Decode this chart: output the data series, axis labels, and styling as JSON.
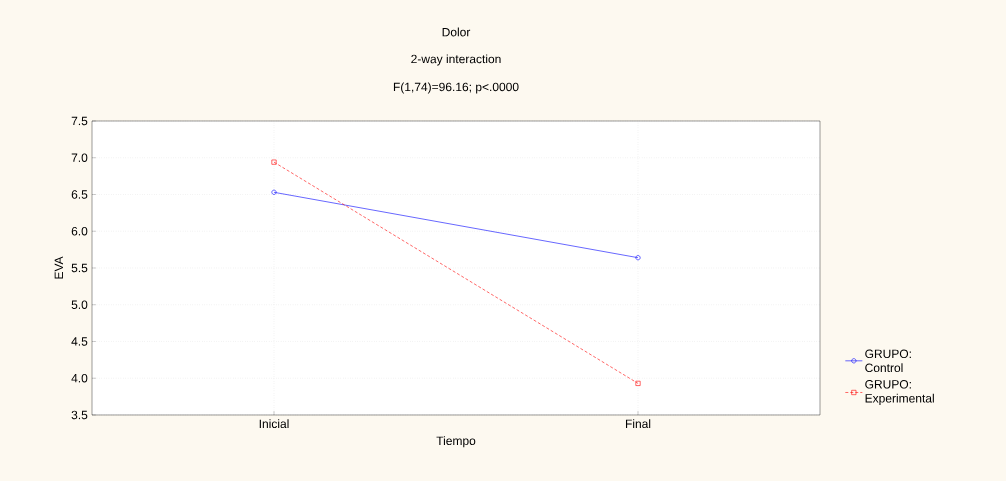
{
  "chart_data": {
    "type": "line",
    "title": "Dolor",
    "subtitle": "2-way interaction",
    "annotations": [
      "F(1,74)=96.16; p<.0000"
    ],
    "xlabel": "Tiempo",
    "ylabel": "EVA",
    "categories": [
      "Inicial",
      "Final"
    ],
    "series": [
      {
        "name": "GRUPO: Control",
        "color": "#0000ff",
        "values": [
          6.53,
          5.64
        ],
        "marker": "circle",
        "line_style": "solid"
      },
      {
        "name": "GRUPO: Experimental",
        "color": "#ff0000",
        "values": [
          6.94,
          3.93
        ],
        "marker": "square",
        "line_style": "dashed"
      }
    ],
    "ylim": [
      3.5,
      7.5
    ],
    "yticks": [
      {
        "value": 3.5,
        "label": "3.5"
      },
      {
        "value": 4,
        "label": "4.0"
      },
      {
        "value": 4.5,
        "label": "4.5"
      },
      {
        "value": 5,
        "label": "5.0"
      },
      {
        "value": 5.5,
        "label": "5.5"
      },
      {
        "value": 6,
        "label": "6.0"
      },
      {
        "value": 6.5,
        "label": "6.5"
      },
      {
        "value": 7,
        "label": "7.0"
      },
      {
        "value": 7.5,
        "label": "7.5"
      }
    ],
    "grid": true,
    "legend": "right"
  }
}
